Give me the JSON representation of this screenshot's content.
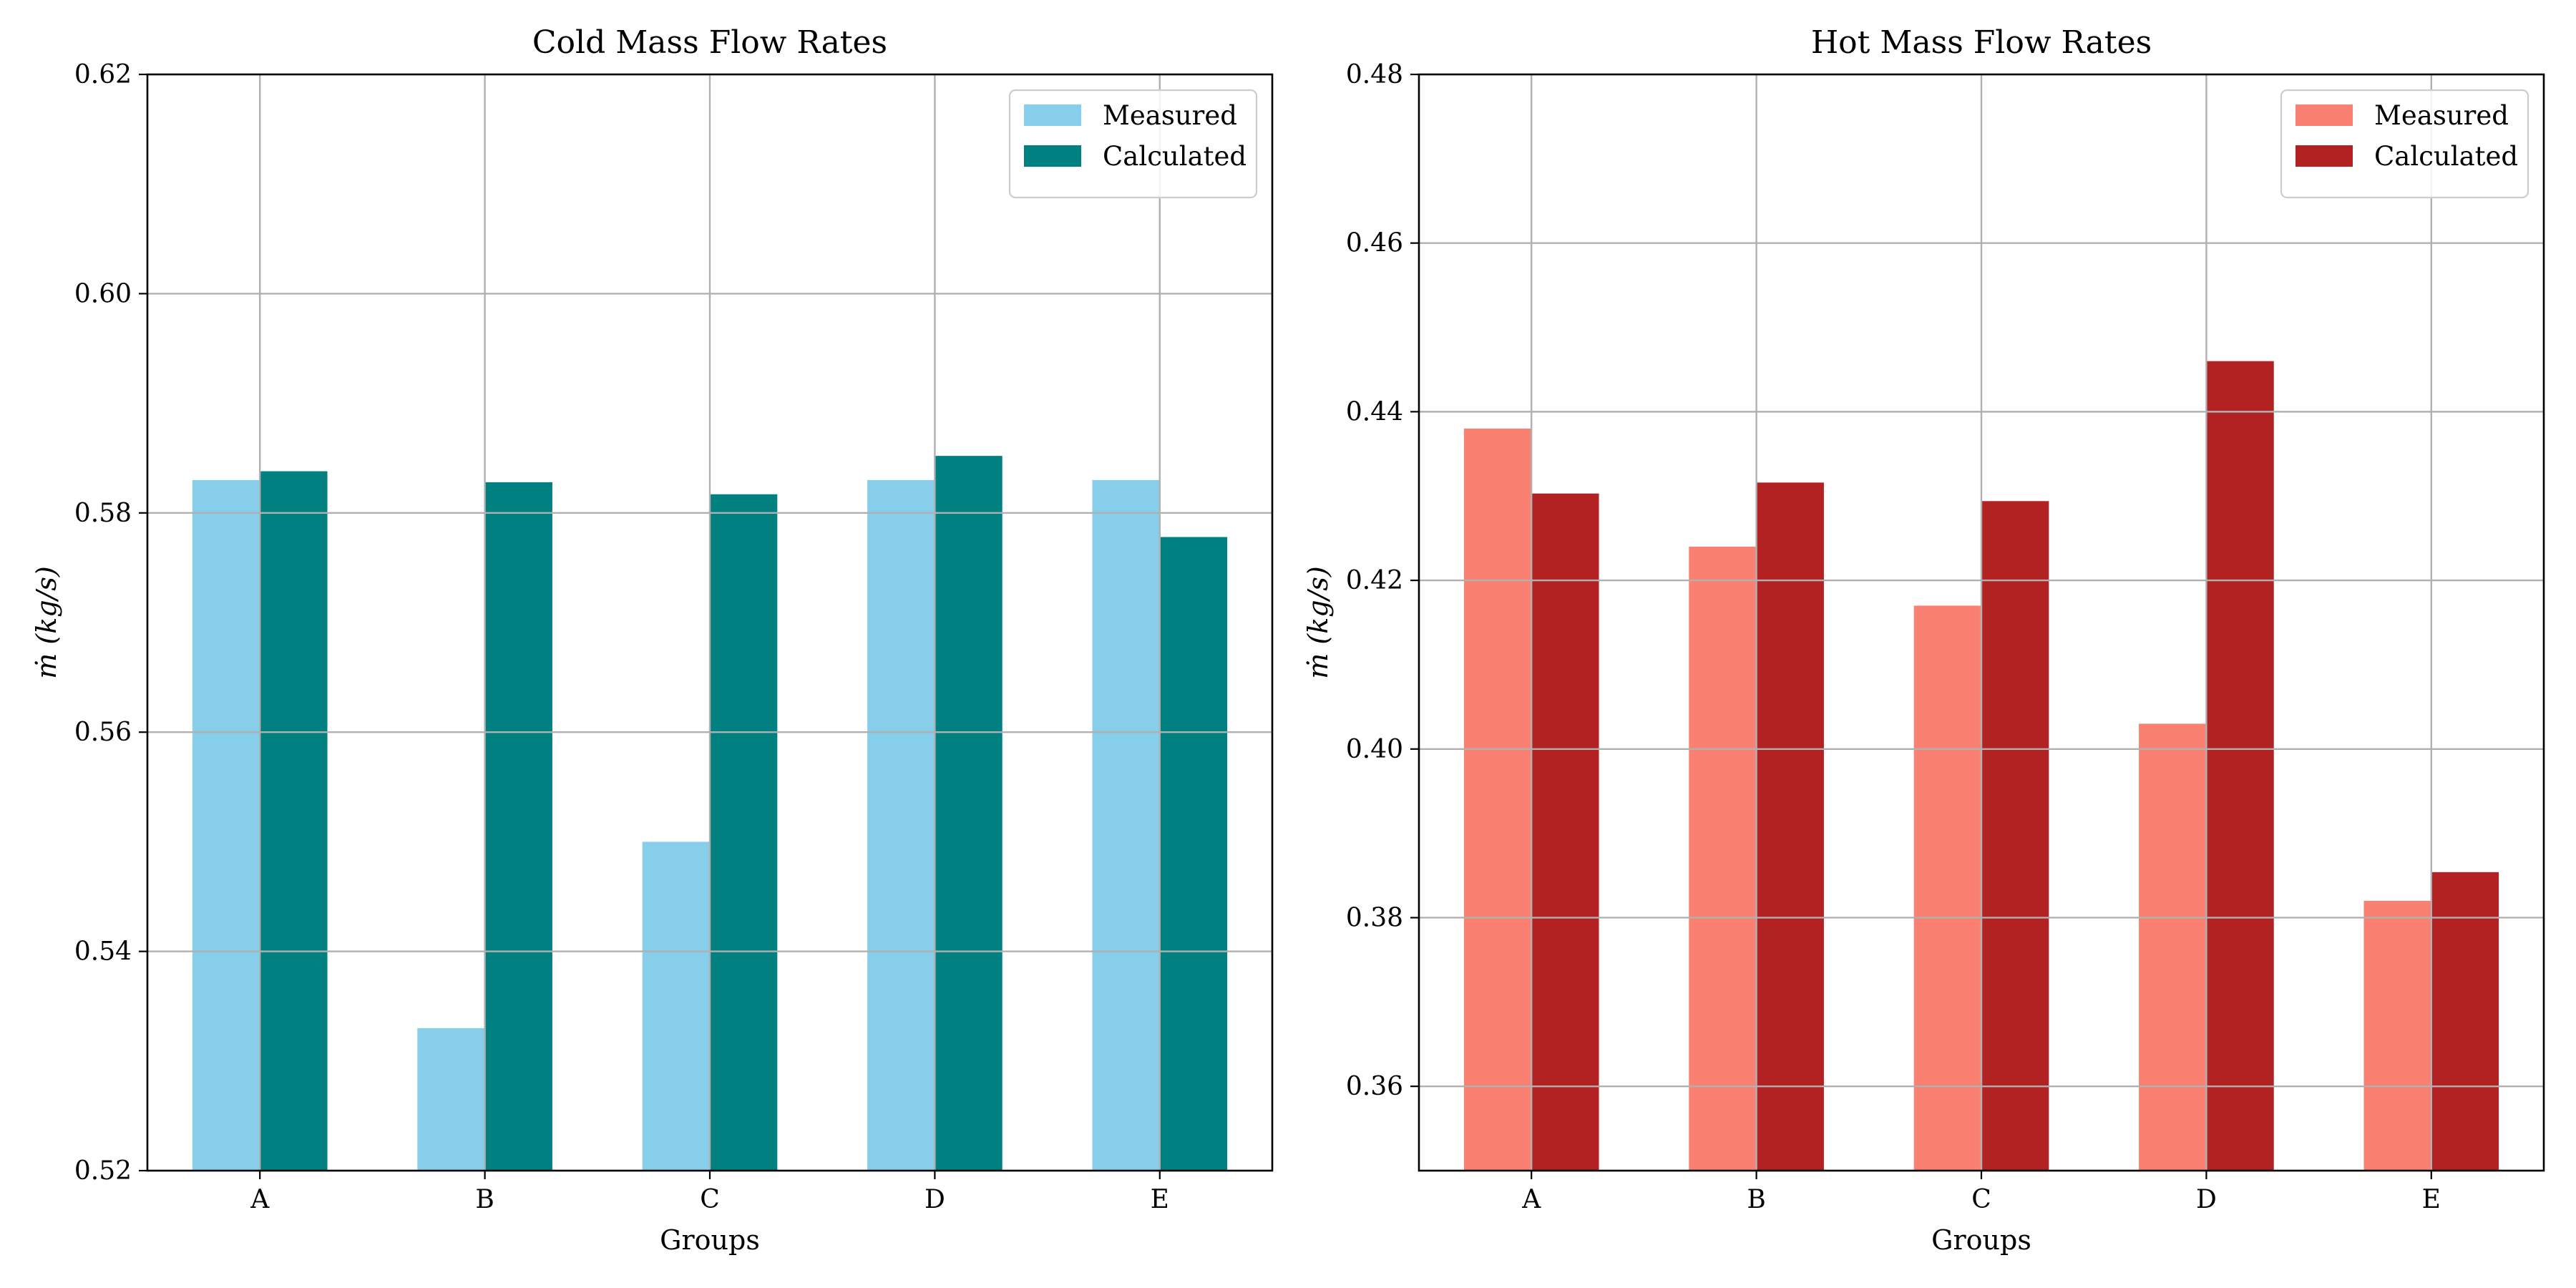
{
  "chart_data": [
    {
      "type": "bar",
      "title": "Cold Mass Flow Rates",
      "xlabel": "Groups",
      "ylabel": "ṁ (kg/s)",
      "categories": [
        "A",
        "B",
        "C",
        "D",
        "E"
      ],
      "ylim": [
        0.52,
        0.62
      ],
      "yticks": [
        0.52,
        0.54,
        0.56,
        0.58,
        0.6,
        0.62
      ],
      "ytick_labels": [
        "0.52",
        "0.54",
        "0.56",
        "0.58",
        "0.60",
        "0.62"
      ],
      "grid": true,
      "legend": "top-right",
      "series": [
        {
          "name": "Measured",
          "color": "#87ceeb",
          "values": [
            0.583,
            0.533,
            0.55,
            0.583,
            0.583
          ]
        },
        {
          "name": "Calculated",
          "color": "#008080",
          "values": [
            0.5838,
            0.5828,
            0.5817,
            0.5852,
            0.5778
          ]
        }
      ]
    },
    {
      "type": "bar",
      "title": "Hot Mass Flow Rates",
      "xlabel": "Groups",
      "ylabel": "ṁ (kg/s)",
      "categories": [
        "A",
        "B",
        "C",
        "D",
        "E"
      ],
      "ylim": [
        0.35,
        0.48
      ],
      "yticks": [
        0.36,
        0.38,
        0.4,
        0.42,
        0.44,
        0.46,
        0.48
      ],
      "ytick_labels": [
        "0.36",
        "0.38",
        "0.40",
        "0.42",
        "0.44",
        "0.46",
        "0.48"
      ],
      "grid": true,
      "legend": "top-right",
      "series": [
        {
          "name": "Measured",
          "color": "#fa8072",
          "values": [
            0.438,
            0.424,
            0.417,
            0.403,
            0.382
          ]
        },
        {
          "name": "Calculated",
          "color": "#b22222",
          "values": [
            0.4303,
            0.4316,
            0.4294,
            0.446,
            0.3854
          ]
        }
      ]
    }
  ]
}
